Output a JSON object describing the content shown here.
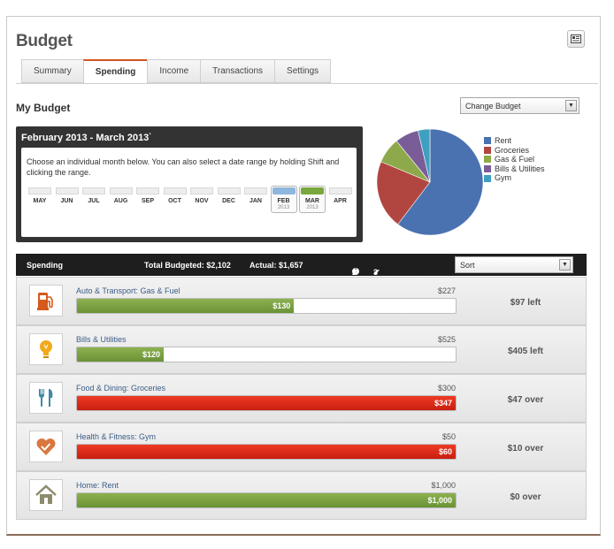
{
  "header": {
    "title": "Budget",
    "icon": "newspaper-icon"
  },
  "tabs": [
    {
      "label": "Summary",
      "active": false
    },
    {
      "label": "Spending",
      "active": true
    },
    {
      "label": "Income",
      "active": false
    },
    {
      "label": "Transactions",
      "active": false
    },
    {
      "label": "Settings",
      "active": false
    }
  ],
  "section": {
    "title": "My Budget",
    "change_budget": "Change Budget"
  },
  "date_range": {
    "title": "February 2013 - March 2013",
    "title_mark": "*",
    "instructions": "Choose an individual month below. You can also select a date range by holding Shift and clicking the range.",
    "months": [
      {
        "label": "MAY",
        "year": "",
        "selected": false,
        "color": "#ededed"
      },
      {
        "label": "JUN",
        "year": "",
        "selected": false,
        "color": "#ededed"
      },
      {
        "label": "JUL",
        "year": "",
        "selected": false,
        "color": "#ededed"
      },
      {
        "label": "AUG",
        "year": "",
        "selected": false,
        "color": "#ededed"
      },
      {
        "label": "SEP",
        "year": "",
        "selected": false,
        "color": "#ededed"
      },
      {
        "label": "OCT",
        "year": "",
        "selected": false,
        "color": "#ededed"
      },
      {
        "label": "NOV",
        "year": "",
        "selected": false,
        "color": "#ededed"
      },
      {
        "label": "DEC",
        "year": "",
        "selected": false,
        "color": "#ededed"
      },
      {
        "label": "JAN",
        "year": "",
        "selected": false,
        "color": "#ededed"
      },
      {
        "label": "FEB",
        "year": "2013",
        "selected": true,
        "color": "#8fb7dd"
      },
      {
        "label": "MAR",
        "year": "2013",
        "selected": true,
        "color": "#7aa63e"
      },
      {
        "label": "APR",
        "year": "",
        "selected": false,
        "color": "#ededed"
      }
    ]
  },
  "chart_data": {
    "type": "pie",
    "labels": [
      "Rent",
      "Groceries",
      "Gas & Fuel",
      "Bills & Utilities",
      "Gym"
    ],
    "values": [
      1000,
      347,
      130,
      120,
      60
    ],
    "colors": [
      "#4a72b0",
      "#b14641",
      "#8ea94b",
      "#7a5d98",
      "#3f9fc0"
    ]
  },
  "spending_header": {
    "label": "Spending",
    "total_budgeted": "Total Budgeted: $2,102",
    "actual": "Actual: $1,657",
    "over_count": "2",
    "ok_count": "3",
    "sort": "Sort"
  },
  "rows": [
    {
      "category": "Auto & Transport: Gas & Fuel",
      "budget": "$227",
      "spent": "$130",
      "progress": 0.573,
      "over": false,
      "status": "$97 left",
      "icon": "gas-pump-icon"
    },
    {
      "category": "Bills & Utilities",
      "budget": "$525",
      "spent": "$120",
      "progress": 0.229,
      "over": false,
      "status": "$405 left",
      "icon": "lightbulb-icon"
    },
    {
      "category": "Food & Dining: Groceries",
      "budget": "$300",
      "spent": "$347",
      "progress": 1.0,
      "over": true,
      "status": "$47 over",
      "icon": "fork-knife-icon"
    },
    {
      "category": "Health & Fitness: Gym",
      "budget": "$50",
      "spent": "$60",
      "progress": 1.0,
      "over": true,
      "status": "$10 over",
      "icon": "heart-check-icon"
    },
    {
      "category": "Home: Rent",
      "budget": "$1,000",
      "spent": "$1,000",
      "progress": 1.0,
      "over": false,
      "status": "$0 over",
      "icon": "house-icon"
    }
  ]
}
